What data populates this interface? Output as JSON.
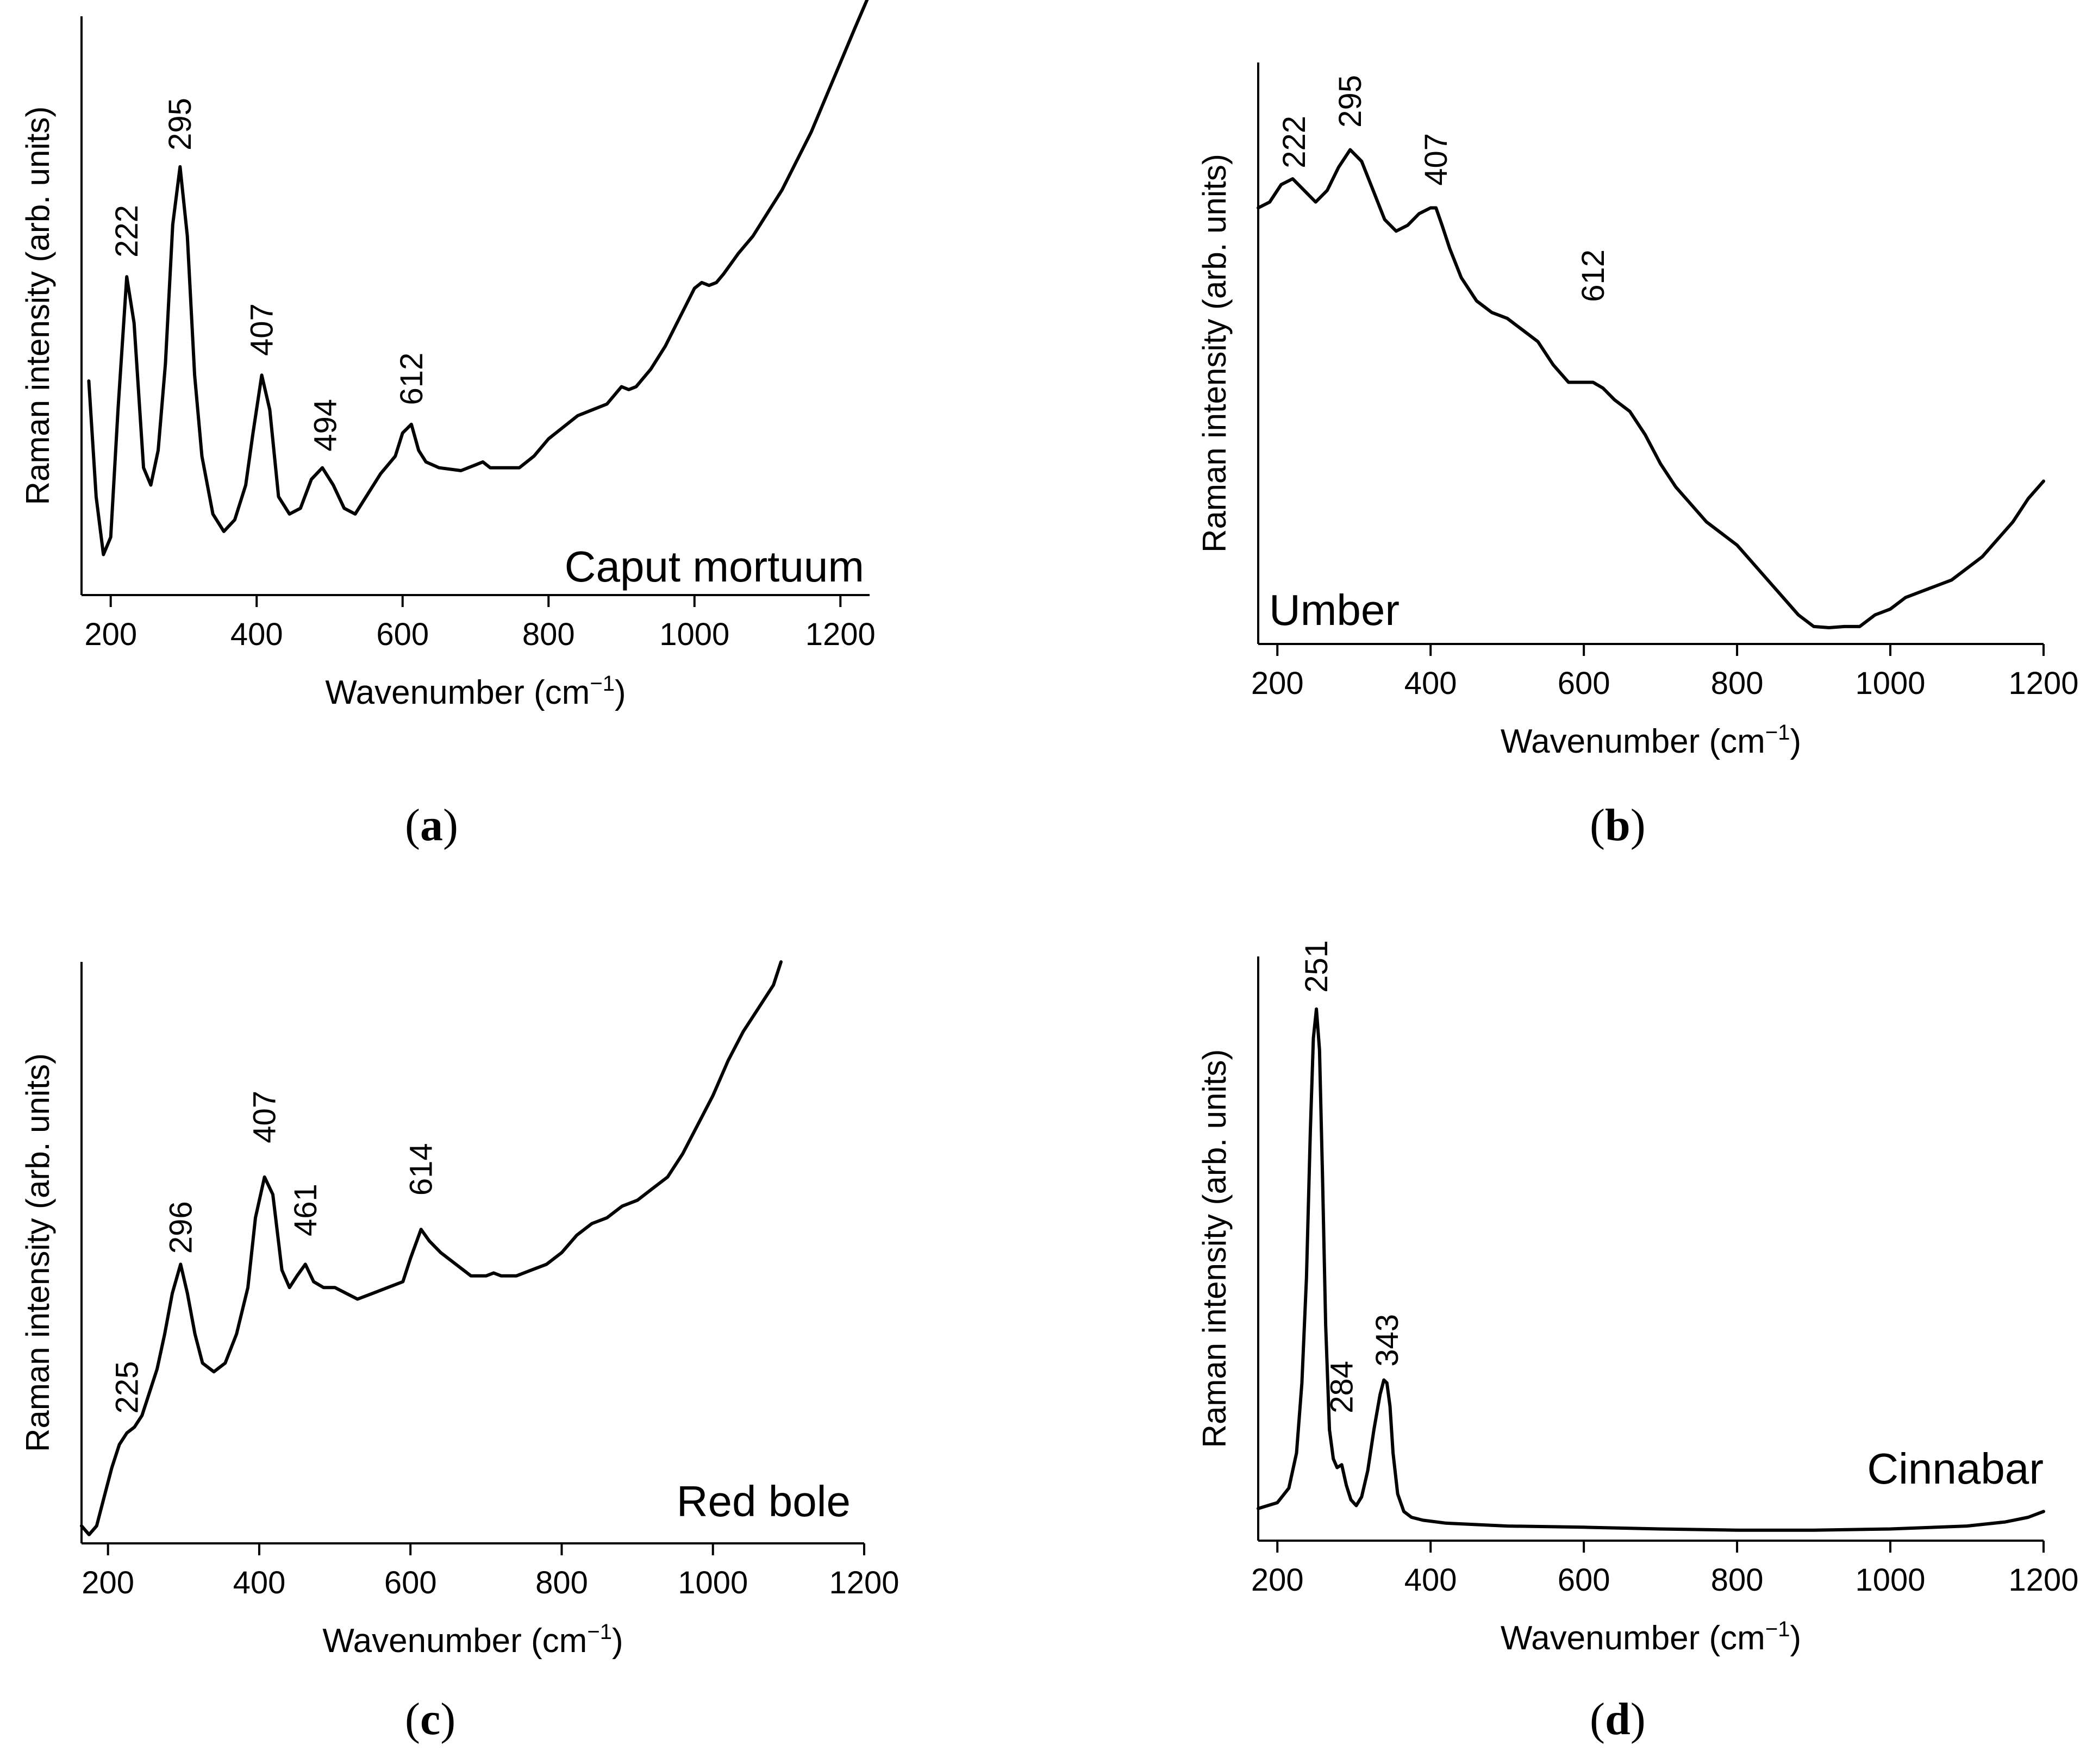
{
  "figure": {
    "panels": [
      {
        "label_open": "(",
        "label_letter": "a",
        "label_close": ")"
      },
      {
        "label_open": "(",
        "label_letter": "b",
        "label_close": ")"
      },
      {
        "label_open": "(",
        "label_letter": "c",
        "label_close": ")"
      },
      {
        "label_open": "(",
        "label_letter": "d",
        "label_close": ")"
      }
    ]
  },
  "chart_data": [
    {
      "type": "line",
      "panel": "a",
      "title": "Caput mortuum",
      "xlabel": "Wavenumber (cm",
      "xlabel_sup": "−1",
      "xlabel_close": ")",
      "ylabel": "Raman intensity (arb. units)",
      "xlim": [
        160,
        1240
      ],
      "ylim": [
        0,
        100
      ],
      "xticks": [
        200,
        400,
        600,
        800,
        1000,
        1200
      ],
      "peak_labels": [
        {
          "x": 222,
          "y": 55.5,
          "text": "222"
        },
        {
          "x": 295,
          "y": 74,
          "text": "295"
        },
        {
          "x": 407,
          "y": 38.5,
          "text": "407"
        },
        {
          "x": 494,
          "y": 22,
          "text": "494"
        },
        {
          "x": 612,
          "y": 30,
          "text": "612"
        }
      ],
      "series": [
        {
          "name": "Caput mortuum",
          "x": [
            170,
            180,
            190,
            200,
            210,
            222,
            232,
            245,
            255,
            265,
            275,
            285,
            295,
            305,
            315,
            325,
            340,
            355,
            370,
            385,
            395,
            407,
            418,
            430,
            445,
            460,
            475,
            490,
            505,
            520,
            535,
            550,
            570,
            590,
            600,
            612,
            622,
            632,
            650,
            680,
            700,
            710,
            720,
            740,
            760,
            780,
            800,
            820,
            840,
            860,
            880,
            900,
            910,
            920,
            940,
            960,
            980,
            1000,
            1010,
            1020,
            1030,
            1040,
            1060,
            1080,
            1100,
            1120,
            1140,
            1160,
            1180,
            1200,
            1220,
            1237
          ],
          "y": [
            37,
            17,
            7,
            10,
            32,
            55,
            47,
            22,
            19,
            25,
            40,
            64,
            74,
            62,
            38,
            24,
            14,
            11,
            13,
            19,
            28,
            38,
            32,
            17,
            14,
            15,
            20,
            22,
            19,
            15,
            14,
            17,
            21,
            24,
            28,
            29.5,
            25,
            23,
            22,
            21.5,
            22.5,
            23,
            22,
            22,
            22,
            24,
            27,
            29,
            31,
            32,
            33,
            36,
            35.5,
            36,
            39,
            43,
            48,
            53,
            54,
            53.5,
            54,
            55.5,
            59,
            62,
            66,
            70,
            75,
            80,
            86,
            92,
            98,
            103
          ]
        }
      ]
    },
    {
      "type": "line",
      "panel": "b",
      "title": "Umber",
      "xlabel": "Wavenumber (cm",
      "xlabel_sup": "−1",
      "xlabel_close": ")",
      "ylabel": "Raman intensity (arb. units)",
      "xlim": [
        175,
        1200
      ],
      "ylim": [
        0,
        100
      ],
      "xticks": [
        200,
        400,
        600,
        800,
        1000,
        1200
      ],
      "peak_labels": [
        {
          "x": 222,
          "y": 79,
          "text": "222"
        },
        {
          "x": 295,
          "y": 86,
          "text": "295"
        },
        {
          "x": 407,
          "y": 76,
          "text": "407"
        },
        {
          "x": 612,
          "y": 56,
          "text": "612"
        }
      ],
      "series": [
        {
          "name": "Umber",
          "x": [
            175,
            190,
            205,
            220,
            235,
            250,
            265,
            280,
            295,
            310,
            325,
            340,
            355,
            370,
            385,
            400,
            407,
            415,
            425,
            440,
            460,
            480,
            500,
            520,
            540,
            560,
            580,
            600,
            612,
            625,
            640,
            660,
            680,
            700,
            720,
            740,
            760,
            780,
            800,
            820,
            840,
            860,
            880,
            900,
            920,
            940,
            960,
            980,
            1000,
            1020,
            1040,
            1060,
            1080,
            1100,
            1120,
            1140,
            1160,
            1180,
            1200
          ],
          "y": [
            75,
            76,
            79,
            80,
            78,
            76,
            78,
            82,
            85,
            83,
            78,
            73,
            71,
            72,
            74,
            75,
            75,
            72,
            68,
            63,
            59,
            57,
            56,
            54,
            52,
            48,
            45,
            45,
            45,
            44,
            42,
            40,
            36,
            31,
            27,
            24,
            21,
            19,
            17,
            14,
            11,
            8,
            5,
            3,
            2.8,
            3,
            3,
            5,
            6,
            8,
            9,
            10,
            11,
            13,
            15,
            18,
            21,
            25,
            28
          ]
        }
      ]
    },
    {
      "type": "line",
      "panel": "c",
      "title": "Red bole",
      "xlabel": "Wavenumber (cm",
      "xlabel_sup": "−1",
      "xlabel_close": ")",
      "ylabel": "Raman intensity (arb. units)",
      "xlim": [
        165,
        1200
      ],
      "ylim": [
        0,
        100
      ],
      "xticks": [
        200,
        400,
        600,
        800,
        1000,
        1200
      ],
      "peak_labels": [
        {
          "x": 225,
          "y": 19.5,
          "text": "225"
        },
        {
          "x": 296,
          "y": 47,
          "text": "296"
        },
        {
          "x": 407,
          "y": 66,
          "text": "407"
        },
        {
          "x": 461,
          "y": 50,
          "text": "461"
        },
        {
          "x": 614,
          "y": 57,
          "text": "614"
        }
      ],
      "series": [
        {
          "name": "Red bole",
          "x": [
            165,
            175,
            185,
            195,
            205,
            215,
            225,
            235,
            245,
            255,
            265,
            275,
            285,
            296,
            305,
            315,
            325,
            340,
            355,
            370,
            385,
            395,
            407,
            418,
            430,
            440,
            450,
            461,
            472,
            485,
            500,
            515,
            530,
            550,
            570,
            590,
            600,
            614,
            625,
            640,
            660,
            680,
            700,
            710,
            720,
            740,
            760,
            780,
            800,
            820,
            840,
            860,
            880,
            900,
            920,
            940,
            960,
            980,
            1000,
            1020,
            1040,
            1060,
            1080,
            1090
          ],
          "y": [
            3,
            1.5,
            3,
            8,
            13,
            17,
            19,
            20,
            22,
            26,
            30,
            36,
            43,
            48,
            43,
            36,
            31,
            29.5,
            31,
            36,
            44,
            56,
            63,
            60,
            47,
            44,
            46,
            48,
            45,
            44,
            44,
            43,
            42,
            43,
            44,
            45,
            49,
            54,
            52,
            50,
            48,
            46,
            46,
            46.5,
            46,
            46,
            47,
            48,
            50,
            53,
            55,
            56,
            58,
            59,
            61,
            63,
            67,
            72,
            77,
            83,
            88,
            92,
            96,
            100
          ]
        }
      ]
    },
    {
      "type": "line",
      "panel": "d",
      "title": "Cinnabar",
      "xlabel": "Wavenumber (cm",
      "xlabel_sup": "−1",
      "xlabel_close": ")",
      "ylabel": "Raman intensity (arb. units)",
      "xlim": [
        175,
        1200
      ],
      "ylim": [
        0,
        100
      ],
      "xticks": [
        200,
        400,
        600,
        800,
        1000,
        1200
      ],
      "peak_labels": [
        {
          "x": 251,
          "y": 91,
          "text": "251"
        },
        {
          "x": 284,
          "y": 19,
          "text": "284"
        },
        {
          "x": 343,
          "y": 27,
          "text": "343"
        }
      ],
      "series": [
        {
          "name": "Cinnabar",
          "x": [
            175,
            200,
            215,
            225,
            232,
            238,
            243,
            247,
            251,
            255,
            259,
            263,
            268,
            273,
            278,
            284,
            290,
            296,
            303,
            310,
            318,
            326,
            334,
            339,
            343,
            347,
            351,
            357,
            365,
            375,
            390,
            420,
            500,
            600,
            700,
            800,
            900,
            1000,
            1100,
            1150,
            1180,
            1200
          ],
          "y": [
            5.5,
            6.5,
            9,
            15,
            27,
            45,
            70,
            86,
            91,
            84,
            62,
            37,
            19,
            14,
            12.5,
            13,
            9.5,
            7,
            6,
            7.5,
            12,
            19,
            25,
            27.5,
            27,
            23,
            15,
            8,
            5,
            4,
            3.5,
            3,
            2.5,
            2.3,
            2,
            1.8,
            1.8,
            2,
            2.5,
            3.2,
            4,
            5
          ]
        }
      ]
    }
  ]
}
